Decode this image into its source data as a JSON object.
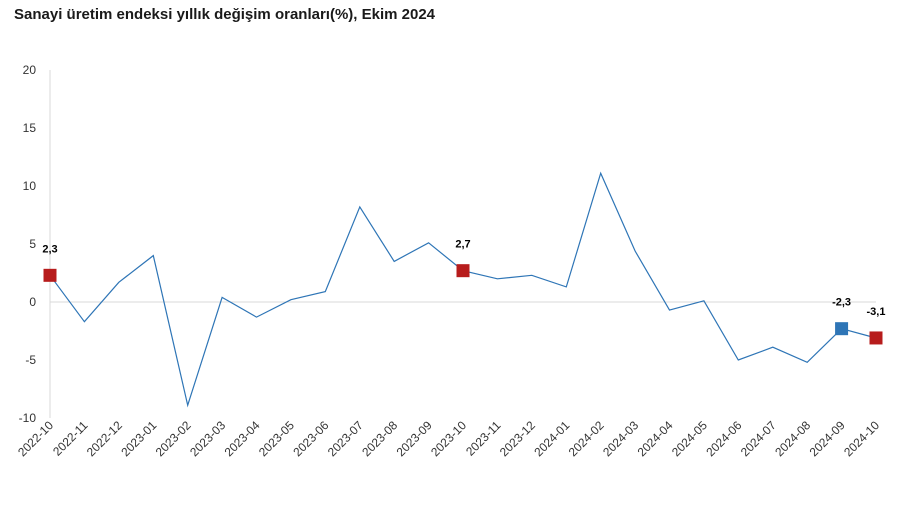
{
  "chart_data": {
    "type": "line",
    "title": "Sanayi üretim endeksi yıllık değişim oranları(%), Ekim 2024",
    "xlabel": "",
    "ylabel": "",
    "ylim": [
      -10,
      20
    ],
    "yticks": [
      "20",
      "15",
      "10",
      "5",
      "0",
      "-5",
      "-10"
    ],
    "grid": "horizontal zero line only",
    "categories": [
      "2022-10",
      "2022-11",
      "2022-12",
      "2023-01",
      "2023-02",
      "2023-03",
      "2023-04",
      "2023-05",
      "2023-06",
      "2023-07",
      "2023-08",
      "2023-09",
      "2023-10",
      "2023-11",
      "2023-12",
      "2024-01",
      "2024-02",
      "2024-03",
      "2024-04",
      "2024-05",
      "2024-06",
      "2024-07",
      "2024-08",
      "2024-09",
      "2024-10"
    ],
    "series": [
      {
        "values": [
          2.3,
          -1.7,
          1.7,
          4.0,
          -8.9,
          0.4,
          -1.3,
          0.2,
          0.9,
          8.2,
          3.5,
          5.1,
          2.7,
          2.0,
          2.3,
          1.3,
          11.1,
          4.4,
          -0.7,
          0.1,
          -5.0,
          -3.9,
          -5.2,
          -2.3,
          -3.1
        ],
        "color": "#2e75b6"
      }
    ],
    "highlighted_points": [
      {
        "index": 0,
        "label": "2,3",
        "color": "#b71c1c"
      },
      {
        "index": 12,
        "label": "2,7",
        "color": "#b71c1c"
      },
      {
        "index": 23,
        "label": "-2,3",
        "color": "#2e75b6"
      },
      {
        "index": 24,
        "label": "-3,1",
        "color": "#b71c1c"
      }
    ]
  }
}
